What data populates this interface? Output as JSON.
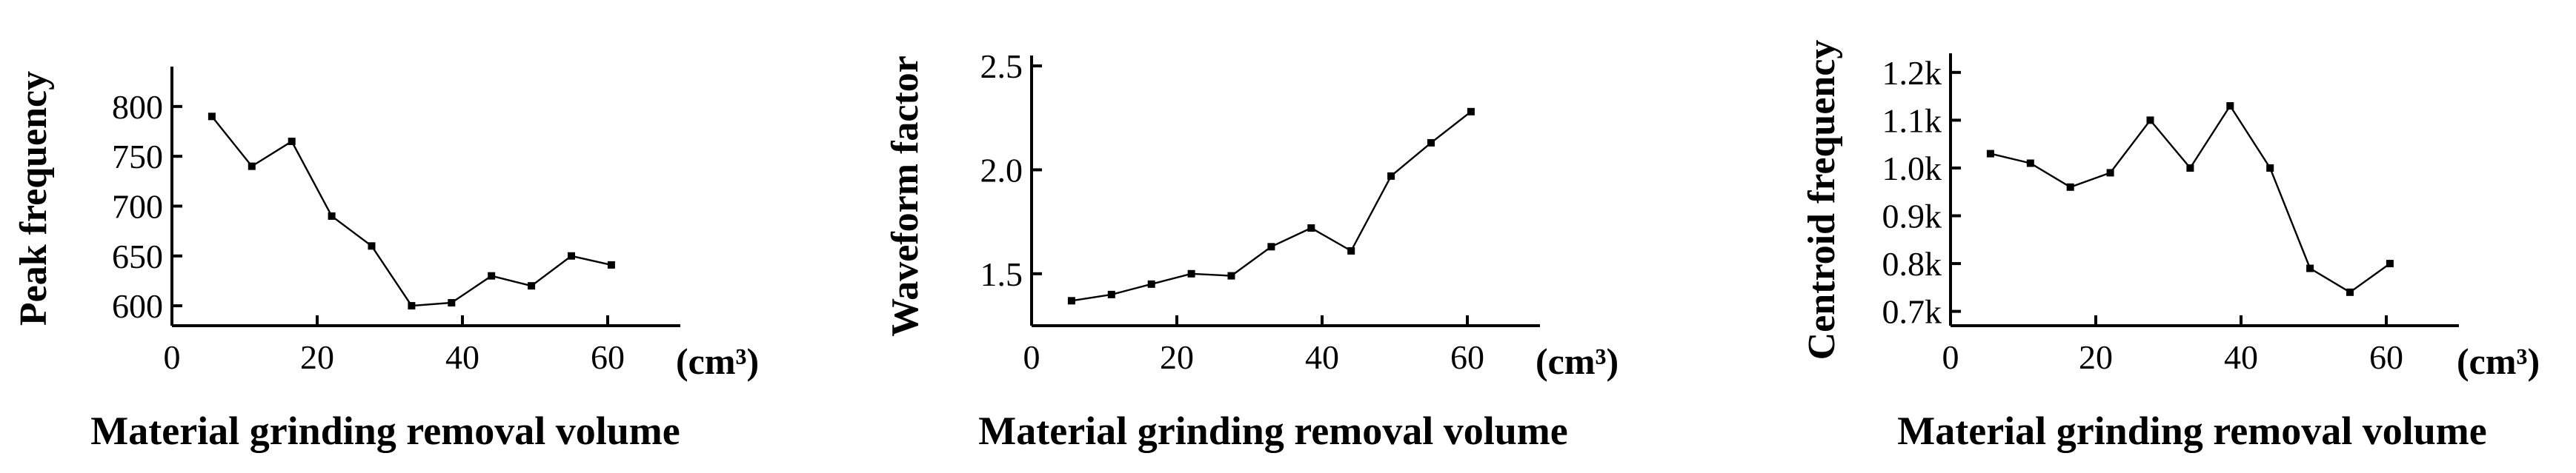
{
  "chart_data": [
    {
      "type": "line",
      "title": "",
      "ylabel": "Peak frequency",
      "xlabel": "Material grinding removal volume",
      "xunit": "(cm³)",
      "xlim": [
        0,
        70
      ],
      "ylim": [
        580,
        840
      ],
      "xticks": [
        0,
        20,
        40,
        60
      ],
      "xtick_labels": [
        "0",
        "20",
        "40",
        "60"
      ],
      "yticks": [
        600,
        650,
        700,
        750,
        800
      ],
      "ytick_labels": [
        "600",
        "650",
        "700",
        "750",
        "800"
      ],
      "grid": false,
      "series": [
        {
          "x": [
            5.5,
            11,
            16.5,
            22,
            27.5,
            33,
            38.5,
            44,
            49.5,
            55,
            60.5
          ],
          "y": [
            790,
            740,
            765,
            690,
            660,
            600,
            603,
            630,
            620,
            650,
            641
          ]
        }
      ]
    },
    {
      "type": "line",
      "title": "",
      "ylabel": "Waveform factor",
      "xlabel": "Material grinding removal volume",
      "xunit": "(cm³)",
      "xlim": [
        0,
        70
      ],
      "ylim": [
        1.25,
        2.55
      ],
      "xticks": [
        0,
        20,
        40,
        60
      ],
      "xtick_labels": [
        "0",
        "20",
        "40",
        "60"
      ],
      "yticks": [
        1.5,
        2.0,
        2.5
      ],
      "ytick_labels": [
        "1.5",
        "2.0",
        "2.5"
      ],
      "grid": false,
      "series": [
        {
          "x": [
            5.5,
            11,
            16.5,
            22,
            27.5,
            33,
            38.5,
            44,
            49.5,
            55,
            60.5
          ],
          "y": [
            1.37,
            1.4,
            1.45,
            1.5,
            1.49,
            1.63,
            1.72,
            1.61,
            1.97,
            2.13,
            2.28
          ]
        }
      ]
    },
    {
      "type": "line",
      "title": "",
      "ylabel": "Centroid frequency",
      "xlabel": "Material grinding removal volume",
      "xunit": "(cm³)",
      "xlim": [
        0,
        70
      ],
      "ylim": [
        0.67,
        1.24
      ],
      "xticks": [
        0,
        20,
        40,
        60
      ],
      "xtick_labels": [
        "0",
        "20",
        "40",
        "60"
      ],
      "yticks": [
        0.7,
        0.8,
        0.9,
        1.0,
        1.1,
        1.2
      ],
      "ytick_labels": [
        "0.7k",
        "0.8k",
        "0.9k",
        "1.0k",
        "1.1k",
        "1.2k"
      ],
      "grid": false,
      "series": [
        {
          "x": [
            5.5,
            11,
            16.5,
            22,
            27.5,
            33,
            38.5,
            44,
            49.5,
            55,
            60.5
          ],
          "y": [
            1.03,
            1.01,
            0.96,
            0.99,
            1.1,
            1.0,
            1.13,
            1.0,
            0.79,
            0.74,
            0.8
          ]
        }
      ]
    }
  ]
}
